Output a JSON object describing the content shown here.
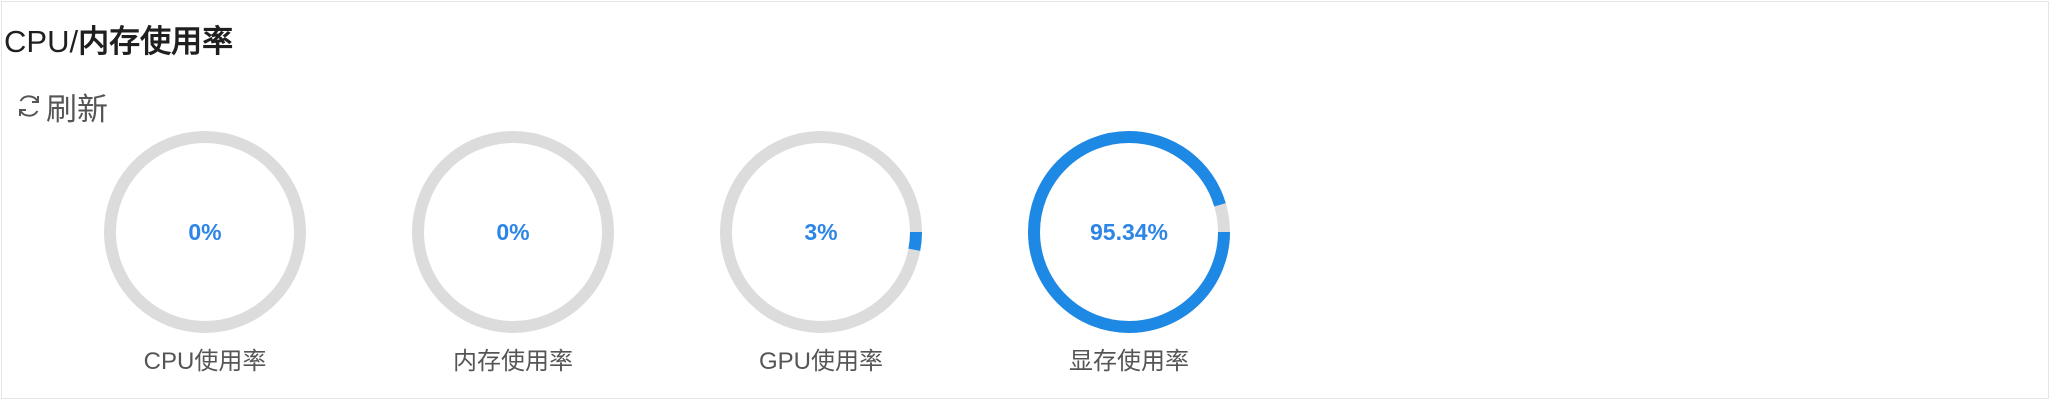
{
  "header": {
    "title_prefix": "CPU/",
    "title_cn": "内存使用率"
  },
  "toolbar": {
    "refresh_label": "刷新"
  },
  "colors": {
    "track": "#dcdcdc",
    "fill": "#1e88e5",
    "value_text": "#2d86e6"
  },
  "gauges": [
    {
      "value_text": "0%",
      "percent": 0,
      "label": "CPU使用率"
    },
    {
      "value_text": "0%",
      "percent": 0,
      "label": "内存使用率"
    },
    {
      "value_text": "3%",
      "percent": 3,
      "label": "GPU使用率"
    },
    {
      "value_text": "95.34%",
      "percent": 95.34,
      "label": "显存使用率"
    }
  ]
}
